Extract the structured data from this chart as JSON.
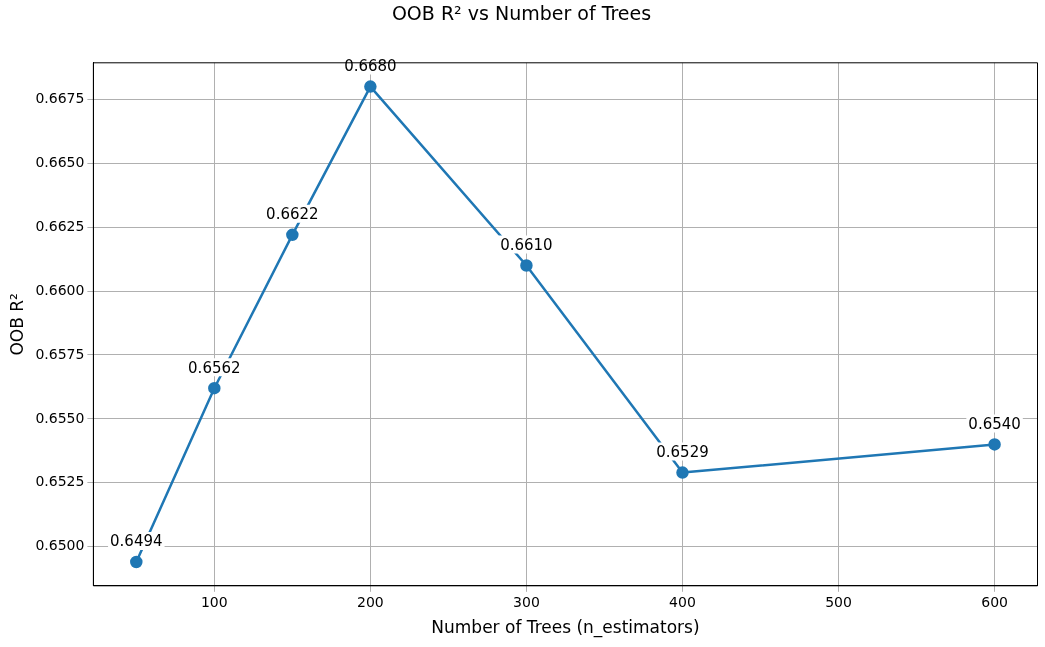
{
  "chart_data": {
    "type": "line",
    "title": "OOB R² vs Number of Trees",
    "xlabel": "Number of Trees (n_estimators)",
    "ylabel": "OOB R²",
    "x": [
      50,
      100,
      150,
      200,
      300,
      400,
      600
    ],
    "series": [
      {
        "color": "#1f77b4",
        "values": [
          0.6494,
          0.6562,
          0.6622,
          0.668,
          0.661,
          0.6529,
          0.654
        ],
        "value_labels": [
          "0.6494",
          "0.6562",
          "0.6622",
          "0.6680",
          "0.6610",
          "0.6529",
          "0.6540"
        ]
      }
    ],
    "xlim": [
      22.5,
      627.5
    ],
    "xticks": [
      100,
      200,
      300,
      400,
      500,
      600
    ],
    "ylim": [
      0.64847,
      0.66893
    ],
    "yticks": [
      {
        "value": 0.65,
        "label": "0.6500"
      },
      {
        "value": 0.6525,
        "label": "0.6525"
      },
      {
        "value": 0.655,
        "label": "0.6550"
      },
      {
        "value": 0.6575,
        "label": "0.6575"
      },
      {
        "value": 0.66,
        "label": "0.6600"
      },
      {
        "value": 0.6625,
        "label": "0.6625"
      },
      {
        "value": 0.665,
        "label": "0.6650"
      },
      {
        "value": 0.6675,
        "label": "0.6675"
      }
    ],
    "grid": true,
    "legend": false,
    "marker": "circle",
    "line_style": "solid"
  }
}
